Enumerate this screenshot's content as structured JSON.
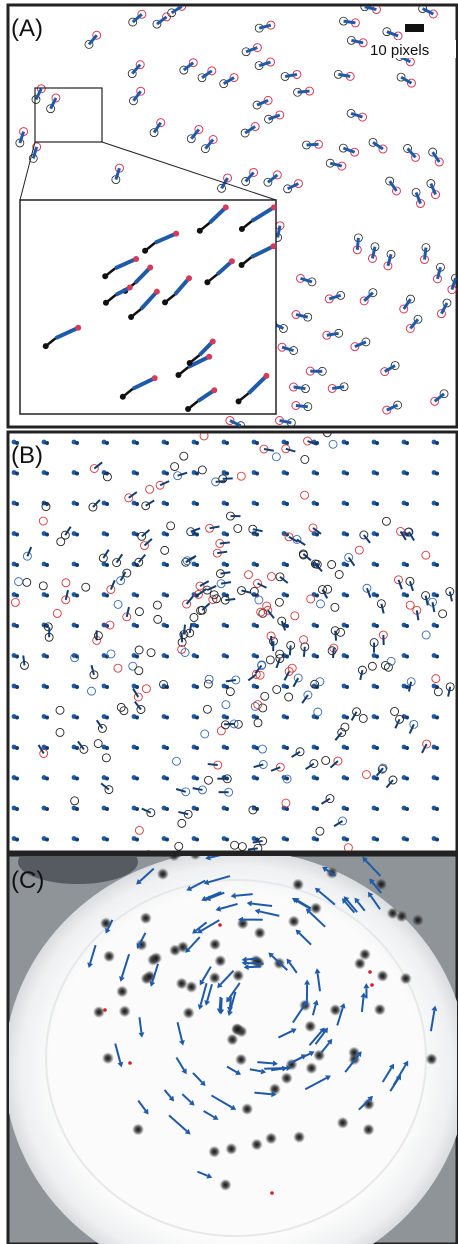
{
  "panels": [
    {
      "label": "(A)",
      "scale_label": "10 pixels"
    },
    {
      "label": "(B)"
    },
    {
      "label": "(C)"
    }
  ]
}
